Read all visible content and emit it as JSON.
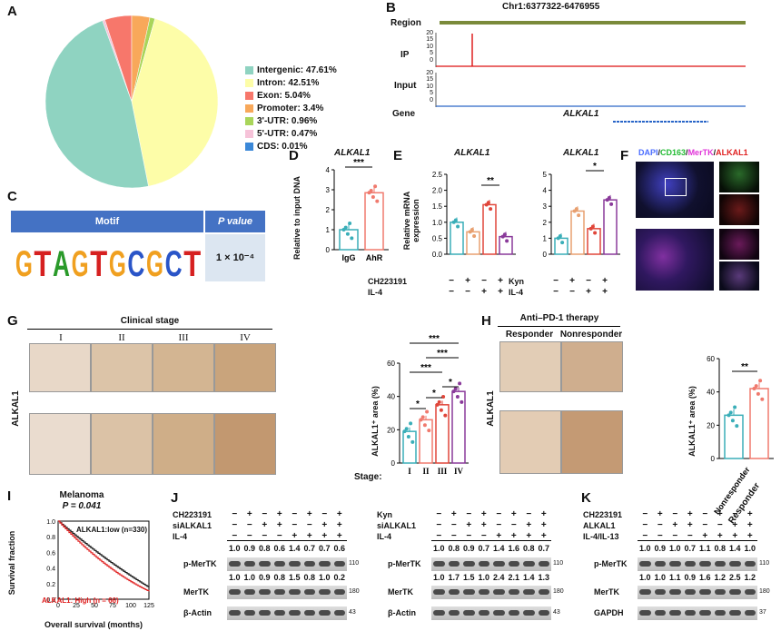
{
  "panels": {
    "A": "A",
    "B": "B",
    "C": "C",
    "D": "D",
    "E": "E",
    "F": "F",
    "G": "G",
    "H": "H",
    "I": "I",
    "J": "J",
    "K": "K"
  },
  "panelA": {
    "chart_data": {
      "type": "pie",
      "series": [
        {
          "label": "Intergenic: 47.61%",
          "value": 47.61,
          "color": "#8fd3c1"
        },
        {
          "label": "Intron: 42.51%",
          "value": 42.51,
          "color": "#fdfda8"
        },
        {
          "label": "Exon: 5.04%",
          "value": 5.04,
          "color": "#f7776b"
        },
        {
          "label": "Promoter: 3.4%",
          "value": 3.4,
          "color": "#f8a85a"
        },
        {
          "label": "3'-UTR: 0.96%",
          "value": 0.96,
          "color": "#a9d55a"
        },
        {
          "label": "5'-UTR: 0.47%",
          "value": 0.47,
          "color": "#f6c3d9"
        },
        {
          "label": "CDS: 0.01%",
          "value": 0.01,
          "color": "#3b88d8"
        }
      ]
    }
  },
  "panelB": {
    "region_title": "Chr1:6377322-6476955",
    "tracks": [
      "Region",
      "IP",
      "Input",
      "Gene"
    ],
    "ip_ticks": [
      "20",
      "15",
      "10",
      "5",
      "0"
    ],
    "input_ticks": [
      "20",
      "15",
      "10",
      "5",
      "0"
    ],
    "gene_name": "ALKAL1"
  },
  "panelC": {
    "header_motif": "Motif",
    "header_p": "P value",
    "motif": "GTAGTGCGCT",
    "p_value": "1 × 10⁻⁴"
  },
  "panelD": {
    "title": "ALKAL1",
    "ylabel": "Relative to input DNA",
    "sig": "***",
    "chart_data": {
      "type": "bar",
      "categories": [
        "IgG",
        "AhR"
      ],
      "values": [
        1.0,
        2.85
      ],
      "ylim": [
        0,
        4
      ],
      "yticks": [
        "0",
        "1",
        "2",
        "3",
        "4"
      ]
    }
  },
  "panelE1": {
    "title": "ALKAL1",
    "ylabel": "Relative mRNA expression",
    "sig": "**",
    "chart_data": {
      "type": "bar",
      "categories": [
        "1",
        "2",
        "3",
        "4"
      ],
      "values": [
        1.0,
        0.7,
        1.55,
        0.55
      ],
      "ylim": [
        0,
        2.5
      ],
      "yticks": [
        "0.0",
        "0.5",
        "1.0",
        "1.5",
        "2.0",
        "2.5"
      ]
    },
    "rows": [
      {
        "label": "CH223191",
        "marks": [
          "−",
          "+",
          "−",
          "+"
        ]
      },
      {
        "label": "IL-4",
        "marks": [
          "−",
          "−",
          "+",
          "+"
        ]
      }
    ]
  },
  "panelE2": {
    "title": "ALKAL1",
    "sig": "*",
    "chart_data": {
      "type": "bar",
      "categories": [
        "1",
        "2",
        "3",
        "4"
      ],
      "values": [
        1.0,
        2.7,
        1.6,
        3.4
      ],
      "ylim": [
        0,
        5
      ],
      "yticks": [
        "0",
        "1",
        "2",
        "3",
        "4",
        "5"
      ]
    },
    "rows": [
      {
        "label": "Kyn",
        "marks": [
          "−",
          "+",
          "−",
          "+"
        ]
      },
      {
        "label": "IL-4",
        "marks": [
          "−",
          "−",
          "+",
          "+"
        ]
      }
    ]
  },
  "panelF": {
    "label_parts": [
      {
        "text": "DAPI",
        "color": "#4a6cff"
      },
      {
        "text": "/",
        "color": "#111"
      },
      {
        "text": "CD163",
        "color": "#22bb33"
      },
      {
        "text": "/",
        "color": "#111"
      },
      {
        "text": "MerTK",
        "color": "#e033d8"
      },
      {
        "text": "/",
        "color": "#111"
      },
      {
        "text": "ALKAL1",
        "color": "#e02020"
      }
    ]
  },
  "panelG": {
    "title": "Clinical stage",
    "stages": [
      "I",
      "II",
      "III",
      "IV"
    ],
    "side_label": "ALKAL1",
    "ylabel": "ALKAL1⁺ area (%)",
    "xprefix": "Stage:",
    "chart_data": {
      "type": "bar",
      "categories": [
        "I",
        "II",
        "III",
        "IV"
      ],
      "values": [
        19,
        26,
        35,
        43
      ],
      "ylim": [
        0,
        60
      ],
      "yticks": [
        "0",
        "20",
        "40",
        "60"
      ]
    },
    "sigs": [
      "*",
      "*",
      "*",
      "***",
      "***",
      "***"
    ]
  },
  "panelH": {
    "title": "Anti–PD-1 therapy",
    "groups": [
      "Responder",
      "Nonresponder"
    ],
    "side_label": "ALKAL1",
    "ylabel": "ALKAL1⁺ area (%)",
    "sig": "**",
    "chart_data": {
      "type": "bar",
      "categories": [
        "Responder",
        "Nonresponder"
      ],
      "values": [
        26,
        42
      ],
      "ylim": [
        0,
        60
      ],
      "yticks": [
        "0",
        "20",
        "40",
        "60"
      ]
    }
  },
  "panelI": {
    "title": "Melanoma",
    "pval": "P = 0.041",
    "low_label": "ALKAL1:low (n=330)",
    "high_label": "ALKAL1: High (n = 66)",
    "ylabel": "Survival fraction",
    "xlabel": "Overall survival (months)",
    "xticks": [
      "0",
      "25",
      "50",
      "75",
      "100",
      "125"
    ],
    "yticks": [
      "0.0",
      "0.2",
      "0.4",
      "0.6",
      "0.8",
      "1.0"
    ]
  },
  "panelJ1": {
    "rows": [
      {
        "label": "CH223191",
        "marks": [
          "−",
          "+",
          "−",
          "+",
          "−",
          "+",
          "−",
          "+"
        ]
      },
      {
        "label": "siALKAL1",
        "marks": [
          "−",
          "−",
          "+",
          "+",
          "−",
          "−",
          "+",
          "+"
        ]
      },
      {
        "label": "IL-4",
        "marks": [
          "−",
          "−",
          "−",
          "−",
          "+",
          "+",
          "+",
          "+"
        ]
      }
    ],
    "pmertk_vals": [
      "1.0",
      "0.9",
      "0.8",
      "0.6",
      "1.4",
      "0.7",
      "0.7",
      "0.6"
    ],
    "mertk_vals": [
      "1.0",
      "1.0",
      "0.9",
      "0.8",
      "1.5",
      "0.8",
      "1.0",
      "0.2"
    ],
    "blots": [
      "p-MerTK",
      "MerTK",
      "β-Actin"
    ],
    "sizes": [
      "110",
      "180",
      "43"
    ]
  },
  "panelJ2": {
    "rows": [
      {
        "label": "Kyn",
        "marks": [
          "−",
          "+",
          "−",
          "+",
          "−",
          "+",
          "−",
          "+"
        ]
      },
      {
        "label": "siALKAL1",
        "marks": [
          "−",
          "−",
          "+",
          "+",
          "−",
          "−",
          "+",
          "+"
        ]
      },
      {
        "label": "IL-4",
        "marks": [
          "−",
          "−",
          "−",
          "−",
          "+",
          "+",
          "+",
          "+"
        ]
      }
    ],
    "pmertk_vals": [
      "1.0",
      "0.8",
      "0.9",
      "0.7",
      "1.4",
      "1.6",
      "0.8",
      "0.7"
    ],
    "mertk_vals": [
      "1.0",
      "1.7",
      "1.5",
      "1.0",
      "2.4",
      "2.1",
      "1.4",
      "1.3"
    ],
    "blots": [
      "p-MerTK",
      "MerTK",
      "β-Actin"
    ],
    "sizes": [
      "110",
      "180",
      "43"
    ]
  },
  "panelK": {
    "rows": [
      {
        "label": "CH223191",
        "marks": [
          "−",
          "+",
          "−",
          "+",
          "−",
          "+",
          "−",
          "+"
        ]
      },
      {
        "label": "ALKAL1",
        "marks": [
          "−",
          "−",
          "+",
          "+",
          "−",
          "−",
          "+",
          "+"
        ]
      },
      {
        "label": "IL-4/IL-13",
        "marks": [
          "−",
          "−",
          "−",
          "−",
          "+",
          "+",
          "+",
          "+"
        ]
      }
    ],
    "pmertk_vals": [
      "1.0",
      "0.9",
      "1.0",
      "0.7",
      "1.1",
      "0.8",
      "1.4",
      "1.0"
    ],
    "mertk_vals": [
      "1.0",
      "1.0",
      "1.1",
      "0.9",
      "1.6",
      "1.2",
      "2.5",
      "1.2"
    ],
    "blots": [
      "p-MerTK",
      "MerTK",
      "GAPDH"
    ],
    "sizes": [
      "110",
      "180",
      "37"
    ]
  }
}
